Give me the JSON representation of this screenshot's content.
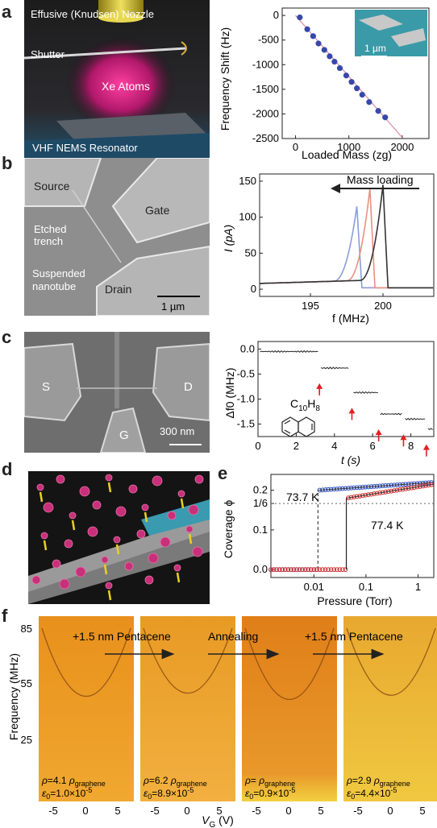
{
  "panels": {
    "a": {
      "letter": "a",
      "image_labels": {
        "nozzle": "Effusive (Knudsen) Nozzle",
        "shutter": "Shutter",
        "atoms": "Xe Atoms",
        "resonator": "VHF NEMS Resonator",
        "inset_scale": "1 µm"
      }
    },
    "b": {
      "letter": "b",
      "image_labels": {
        "source": "Source",
        "gate": "Gate",
        "trench": "Etched trench",
        "trench_l1": "Etched",
        "trench_l2": "trench",
        "nanotube_l1": "Suspended",
        "nanotube_l2": "nanotube",
        "drain": "Drain",
        "scale": "1 µm"
      },
      "annotation": "Mass loading"
    },
    "c": {
      "letter": "c",
      "image_labels": {
        "s": "S",
        "d": "D",
        "g": "G",
        "scale": "300 nm"
      },
      "molecule_label": "C10H8",
      "molecule_main": "C",
      "molecule_sub1": "10",
      "molecule_mid": "H",
      "molecule_sub2": "8"
    },
    "d": {
      "letter": "d"
    },
    "e": {
      "letter": "e",
      "annotations": {
        "t1": "73.7 K",
        "t2": "77.4 K"
      }
    },
    "f": {
      "letter": "f",
      "arrows": [
        "+1.5 nm Pentacene",
        "Annealing",
        "+1.5 nm Pentacene"
      ],
      "subpanels": [
        {
          "rho_val": "4.1",
          "rho_sub": "graphene",
          "eps_val": "1.0×10",
          "eps_exp": "-5"
        },
        {
          "rho_val": "6.2",
          "rho_sub": "graphene",
          "eps_val": "8.9×10",
          "eps_exp": "-5"
        },
        {
          "rho_val": "",
          "rho_sub": "graphene",
          "eps_val": "0.9×10",
          "eps_exp": "-5"
        },
        {
          "rho_val": "2.9",
          "rho_sub": "graphene",
          "eps_val": "4.4×10",
          "eps_exp": "-5"
        }
      ],
      "ylabel": "Frequency (MHz)",
      "yticks": [
        "85",
        "55",
        "25"
      ],
      "xticks": [
        "-5",
        "0",
        "5"
      ],
      "xlabel_main": "V",
      "xlabel_sub": "G",
      "xlabel_unit": " (V)"
    }
  },
  "chart_data": [
    {
      "id": "a",
      "type": "scatter",
      "xlabel": "Loaded Mass (zg)",
      "ylabel": "Frequency Shift (Hz)",
      "xlim": [
        -250,
        2500
      ],
      "ylim": [
        -2500,
        150
      ],
      "xticks": [
        0,
        1000,
        2000
      ],
      "yticks": [
        0,
        -500,
        -1000,
        -1500,
        -2000,
        -2500
      ],
      "x": [
        80,
        220,
        330,
        430,
        540,
        640,
        730,
        830,
        950,
        1050,
        1150,
        1250,
        1380,
        1550,
        1680
      ],
      "y": [
        -40,
        -280,
        -420,
        -570,
        -700,
        -830,
        -940,
        -1070,
        -1220,
        -1350,
        -1480,
        -1610,
        -1760,
        -1940,
        -2070
      ],
      "fit_line": [
        [
          0,
          0
        ],
        [
          2000,
          -2480
        ]
      ]
    },
    {
      "id": "b",
      "type": "line",
      "xlabel": "f (MHz)",
      "ylabel": "I (pA)",
      "xlim": [
        191.5,
        203.5
      ],
      "ylim": [
        -10,
        160
      ],
      "xticks": [
        195,
        200
      ],
      "yticks": [
        0,
        50,
        100,
        150
      ],
      "series": [
        {
          "color": "#8a9ed8",
          "peak_x": 198.2,
          "peak_y": 115
        },
        {
          "color": "#e89080",
          "peak_x": 199.1,
          "peak_y": 140
        },
        {
          "color": "#333333",
          "peak_x": 200.0,
          "peak_y": 145
        }
      ]
    },
    {
      "id": "c",
      "type": "line",
      "xlabel": "t (s)",
      "ylabel": "Δf0 (MHz)",
      "xlim": [
        0,
        9.2
      ],
      "ylim": [
        -1.75,
        0.15
      ],
      "xticks": [
        0,
        2,
        4,
        6,
        8
      ],
      "yticks": [
        0.0,
        -0.5,
        -1.0,
        -1.5
      ],
      "segments": [
        {
          "x0": 0.1,
          "x1": 3.2,
          "y": -0.05
        },
        {
          "x0": 3.3,
          "x1": 4.8,
          "y": -0.38
        },
        {
          "x0": 5.0,
          "x1": 6.3,
          "y": -0.87
        },
        {
          "x0": 6.4,
          "x1": 7.6,
          "y": -1.3
        },
        {
          "x0": 7.7,
          "x1": 8.8,
          "y": -1.4
        },
        {
          "x0": 8.9,
          "x1": 9.2,
          "y": -1.6
        }
      ],
      "arrows_x": [
        3.3,
        5.0,
        6.4,
        7.7,
        8.9
      ]
    },
    {
      "id": "e",
      "type": "line",
      "xlabel": "Pressure (Torr)",
      "ylabel": "Coverage ϕ",
      "xscale": "log",
      "xlim": [
        0.0015,
        2
      ],
      "ylim": [
        -0.02,
        0.24
      ],
      "xticks": [
        0.01,
        0.1,
        1
      ],
      "xticklabels": [
        "0.01",
        "0.1",
        "1"
      ],
      "yticks": [
        0.0,
        0.1,
        0.1667,
        0.2
      ],
      "yticklabels": [
        "0.0",
        "0.1",
        "1/6",
        "0.2"
      ],
      "series": [
        {
          "name": "73.7 K",
          "color": "#3050c0",
          "step_x": 0.012,
          "low": 0.0,
          "high": 0.2,
          "high_end": 0.22
        },
        {
          "name": "77.4 K",
          "color": "#d03030",
          "step_x": 0.042,
          "low": 0.0,
          "high": 0.18,
          "high_end": 0.215
        }
      ]
    }
  ]
}
